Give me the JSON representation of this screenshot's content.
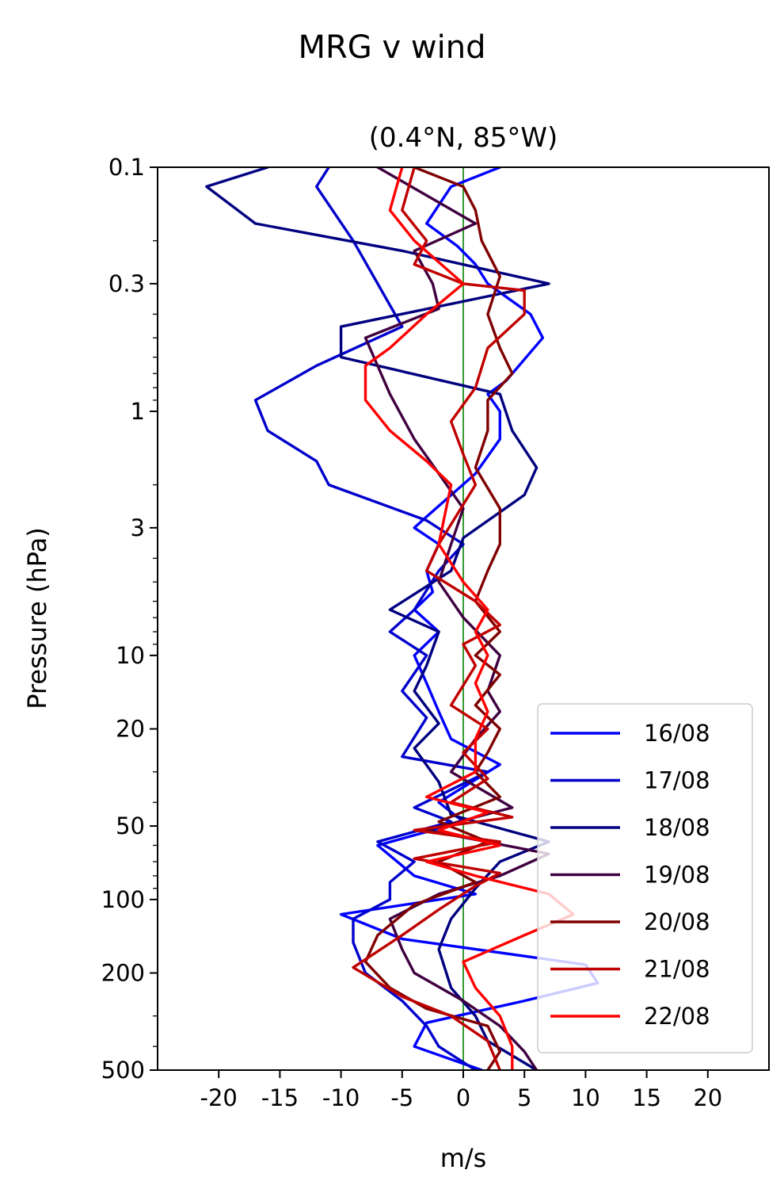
{
  "title": "MRG v wind",
  "chart_data": {
    "type": "line",
    "title": "(0.4°N, 85°W)",
    "xlabel": "m/s",
    "ylabel": "Pressure (hPa)",
    "xlim": [
      -25,
      25
    ],
    "ylim": [
      500,
      0.1
    ],
    "y_scale": "log",
    "x_ticks": [
      -20,
      -15,
      -10,
      -5,
      0,
      5,
      10,
      15,
      20
    ],
    "x_tick_labels": [
      "-20",
      "-15",
      "-10",
      "-5",
      "0",
      "5",
      "10",
      "15",
      "20"
    ],
    "y_ticks": [
      0.1,
      0.3,
      1,
      3,
      10,
      20,
      50,
      100,
      200,
      500
    ],
    "y_tick_labels": [
      "0.1",
      "0.3",
      "1",
      "3",
      "10",
      "20",
      "50",
      "100",
      "200",
      "500"
    ],
    "zero_line": {
      "x": 0,
      "color": "#008000"
    },
    "legend": {
      "position": "lower-right"
    },
    "series": [
      {
        "name": "16/08",
        "color": "#0000ff",
        "points": [
          [
            3,
            0.1
          ],
          [
            -1,
            0.12
          ],
          [
            -3,
            0.17
          ],
          [
            -0.5,
            0.21
          ],
          [
            1,
            0.25
          ],
          [
            2,
            0.3
          ],
          [
            5.5,
            0.4
          ],
          [
            6.5,
            0.5
          ],
          [
            3.5,
            0.75
          ],
          [
            2,
            0.85
          ],
          [
            3,
            1
          ],
          [
            3,
            1.3
          ],
          [
            1,
            1.8
          ],
          [
            -3,
            2.7
          ],
          [
            -4,
            3
          ],
          [
            -2,
            3.5
          ],
          [
            -3,
            4.5
          ],
          [
            -2.5,
            5.5
          ],
          [
            -4,
            6.5
          ],
          [
            -2,
            8
          ],
          [
            -4,
            10
          ],
          [
            -3,
            13
          ],
          [
            -2,
            17
          ],
          [
            -1,
            22
          ],
          [
            3,
            28
          ],
          [
            -2,
            40
          ],
          [
            0,
            48
          ],
          [
            -7,
            60
          ],
          [
            -4,
            80
          ],
          [
            1,
            95
          ],
          [
            -10,
            115
          ],
          [
            -5,
            145
          ],
          [
            10,
            185
          ],
          [
            11,
            220
          ],
          [
            5,
            260
          ],
          [
            -3,
            320
          ],
          [
            -4,
            400
          ],
          [
            1.5,
            500
          ]
        ]
      },
      {
        "name": "17/08",
        "color": "#0000cc",
        "points": [
          [
            -11,
            0.1
          ],
          [
            -12,
            0.12
          ],
          [
            -9,
            0.2
          ],
          [
            -7,
            0.3
          ],
          [
            -5,
            0.45
          ],
          [
            -12,
            0.65
          ],
          [
            -17,
            0.9
          ],
          [
            -16,
            1.2
          ],
          [
            -12,
            1.6
          ],
          [
            -11,
            2
          ],
          [
            -3,
            2.8
          ],
          [
            0,
            3.5
          ],
          [
            -2,
            4.5
          ],
          [
            -4,
            6.5
          ],
          [
            -6,
            8
          ],
          [
            -3,
            10
          ],
          [
            -5,
            14
          ],
          [
            -3,
            18
          ],
          [
            -5,
            26
          ],
          [
            2,
            30
          ],
          [
            -4,
            42
          ],
          [
            -1,
            48
          ],
          [
            -7,
            58
          ],
          [
            -4,
            70
          ],
          [
            -6,
            85
          ],
          [
            -6,
            100
          ],
          [
            -9,
            120
          ],
          [
            -9,
            150
          ],
          [
            -8,
            200
          ],
          [
            -5,
            260
          ],
          [
            -3,
            330
          ],
          [
            -2,
            400
          ],
          [
            1,
            500
          ]
        ]
      },
      {
        "name": "18/08",
        "color": "#000080",
        "points": [
          [
            -16,
            0.1
          ],
          [
            -21,
            0.12
          ],
          [
            -17,
            0.17
          ],
          [
            -5,
            0.22
          ],
          [
            7,
            0.3
          ],
          [
            -10,
            0.45
          ],
          [
            -10,
            0.6
          ],
          [
            3,
            0.85
          ],
          [
            4,
            1.2
          ],
          [
            6,
            1.7
          ],
          [
            5,
            2.2
          ],
          [
            0,
            3.3
          ],
          [
            -1,
            4.5
          ],
          [
            -6,
            6.5
          ],
          [
            -2,
            8
          ],
          [
            -3,
            11
          ],
          [
            -4,
            14
          ],
          [
            -2,
            19
          ],
          [
            -4,
            24
          ],
          [
            -2,
            33
          ],
          [
            -1,
            45
          ],
          [
            7,
            58
          ],
          [
            3,
            70
          ],
          [
            1,
            90
          ],
          [
            -1,
            120
          ],
          [
            -2,
            160
          ],
          [
            -1,
            230
          ],
          [
            1,
            300
          ],
          [
            2,
            380
          ],
          [
            6,
            500
          ]
        ]
      },
      {
        "name": "19/08",
        "color": "#400040",
        "points": [
          [
            -7,
            0.1
          ],
          [
            1,
            0.17
          ],
          [
            -4,
            0.22
          ],
          [
            -2.5,
            0.3
          ],
          [
            -2,
            0.38
          ],
          [
            -8,
            0.5
          ],
          [
            -6,
            0.85
          ],
          [
            -4,
            1.3
          ],
          [
            -2,
            1.8
          ],
          [
            0,
            2.5
          ],
          [
            -1,
            3.5
          ],
          [
            -2,
            5
          ],
          [
            0,
            7
          ],
          [
            3,
            10
          ],
          [
            2,
            14
          ],
          [
            3,
            17
          ],
          [
            1,
            22
          ],
          [
            -1,
            30
          ],
          [
            4,
            42
          ],
          [
            -3,
            52
          ],
          [
            7,
            65
          ],
          [
            3,
            80
          ],
          [
            -2,
            95
          ],
          [
            -6,
            120
          ],
          [
            -5,
            160
          ],
          [
            -4,
            200
          ],
          [
            0,
            260
          ],
          [
            3,
            330
          ],
          [
            5,
            420
          ],
          [
            6,
            500
          ]
        ]
      },
      {
        "name": "20/08",
        "color": "#800000",
        "points": [
          [
            -4,
            0.1
          ],
          [
            0,
            0.12
          ],
          [
            1,
            0.15
          ],
          [
            1.5,
            0.2
          ],
          [
            3,
            0.28
          ],
          [
            2,
            0.4
          ],
          [
            3,
            0.55
          ],
          [
            4,
            0.7
          ],
          [
            2,
            0.9
          ],
          [
            2,
            1.2
          ],
          [
            1,
            1.7
          ],
          [
            3,
            2.5
          ],
          [
            3,
            3.5
          ],
          [
            2,
            4.5
          ],
          [
            1,
            6
          ],
          [
            3,
            8
          ],
          [
            1,
            10
          ],
          [
            3,
            12
          ],
          [
            1,
            16
          ],
          [
            3,
            20
          ],
          [
            2,
            25
          ],
          [
            1,
            30
          ],
          [
            3,
            38
          ],
          [
            -2,
            48
          ],
          [
            2,
            58
          ],
          [
            -2,
            70
          ],
          [
            1,
            85
          ],
          [
            -4,
            105
          ],
          [
            -7,
            140
          ],
          [
            -8,
            180
          ],
          [
            -6,
            230
          ],
          [
            -3,
            280
          ],
          [
            2,
            330
          ],
          [
            3,
            420
          ],
          [
            2,
            500
          ]
        ]
      },
      {
        "name": "21/08",
        "color": "#c00000",
        "points": [
          [
            -4,
            0.1
          ],
          [
            -5,
            0.15
          ],
          [
            -3,
            0.2
          ],
          [
            -4,
            0.25
          ],
          [
            0,
            0.3
          ],
          [
            5,
            0.32
          ],
          [
            5,
            0.4
          ],
          [
            2,
            0.55
          ],
          [
            1,
            0.8
          ],
          [
            -1,
            1.1
          ],
          [
            0,
            1.5
          ],
          [
            1,
            2
          ],
          [
            -2,
            3.5
          ],
          [
            -3,
            4.5
          ],
          [
            1,
            6
          ],
          [
            3,
            7.5
          ],
          [
            0,
            9
          ],
          [
            1,
            11
          ],
          [
            -1,
            16
          ],
          [
            2,
            20
          ],
          [
            0,
            25
          ],
          [
            2,
            32
          ],
          [
            -1,
            40
          ],
          [
            4,
            46
          ],
          [
            -4,
            52
          ],
          [
            3,
            58
          ],
          [
            -4,
            68
          ],
          [
            3,
            78
          ],
          [
            1,
            88
          ],
          [
            -2,
            110
          ],
          [
            -5,
            140
          ],
          [
            -9,
            190
          ],
          [
            -5,
            250
          ],
          [
            -1,
            300
          ],
          [
            2,
            380
          ],
          [
            3,
            500
          ]
        ]
      },
      {
        "name": "22/08",
        "color": "#ff0000",
        "points": [
          [
            -5,
            0.1
          ],
          [
            -6,
            0.15
          ],
          [
            -4,
            0.2
          ],
          [
            0,
            0.3
          ],
          [
            -3,
            0.4
          ],
          [
            -6,
            0.55
          ],
          [
            -8,
            0.65
          ],
          [
            -8,
            0.9
          ],
          [
            -6,
            1.2
          ],
          [
            -3,
            1.6
          ],
          [
            -1,
            2
          ],
          [
            -2,
            3.5
          ],
          [
            0,
            5
          ],
          [
            2,
            6.5
          ],
          [
            1,
            8
          ],
          [
            2,
            10
          ],
          [
            1,
            13
          ],
          [
            2,
            17
          ],
          [
            1,
            22
          ],
          [
            1,
            30
          ],
          [
            -3,
            38
          ],
          [
            2,
            44
          ],
          [
            -2,
            52
          ],
          [
            3,
            60
          ],
          [
            -3,
            70
          ],
          [
            1,
            80
          ],
          [
            7,
            95
          ],
          [
            9,
            115
          ],
          [
            5,
            140
          ],
          [
            0,
            180
          ],
          [
            1,
            230
          ],
          [
            3,
            300
          ],
          [
            4,
            400
          ],
          [
            4,
            500
          ]
        ]
      }
    ]
  }
}
